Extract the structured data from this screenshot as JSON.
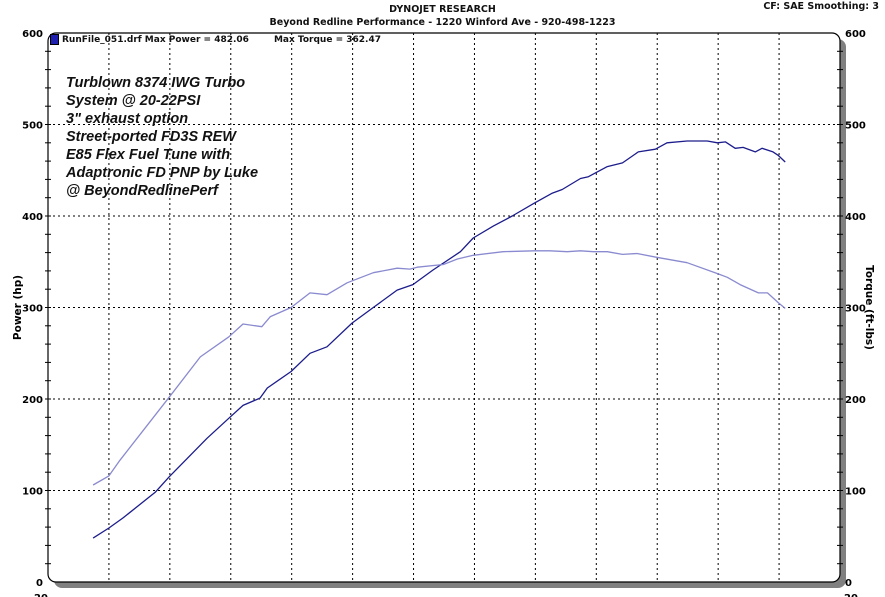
{
  "header": {
    "title": "DYNOJET RESEARCH",
    "subtitle": "Beyond Redline Performance - 1220 Winford Ave - 920-498-1223",
    "correction": "CF: SAE  Smoothing: 3"
  },
  "legend": {
    "run_label": "RunFile_051.drf Max Power = 482.06",
    "torque_label": "Max Torque = 362.47"
  },
  "notes": [
    "Turblown 8374 IWG Turbo",
    "System @ 20-22PSI",
    "3\" exhaust option",
    "Street-ported FD3S REW",
    "E85 Flex Fuel Tune with",
    "Adaptronic FD PNP by Luke",
    "@ BeyondRedlinePerf"
  ],
  "chart_data": {
    "type": "line",
    "title": "DYNOJET RESEARCH",
    "ylabel": "Power (hp)",
    "y2label": "Torque (ft-lbs)",
    "ylim": [
      0,
      600
    ],
    "y2lim": [
      0,
      600
    ],
    "yticks": [
      "0",
      "100",
      "200",
      "300",
      "400",
      "500",
      "600"
    ],
    "xlim": [
      0,
      13
    ],
    "xtick_partial": "20",
    "grid": true,
    "legend": "top-left",
    "colors": {
      "power": "#1c1c8c",
      "torque": "#8a8ad0",
      "frame_shadow": "#808080"
    },
    "series": [
      {
        "key": "power",
        "x": [
          0.74,
          1.0,
          1.23,
          1.76,
          1.99,
          2.61,
          2.97,
          3.2,
          3.48,
          3.6,
          3.99,
          4.3,
          4.58,
          4.99,
          5.34,
          5.73,
          5.99,
          6.32,
          6.77,
          6.98,
          7.31,
          7.62,
          7.98,
          8.28,
          8.44,
          8.74,
          8.87,
          9.18,
          9.43,
          9.69,
          9.97,
          10.16,
          10.49,
          10.82,
          10.99,
          11.12,
          11.28,
          11.41,
          11.61,
          11.72,
          11.9,
          11.99,
          12.1
        ],
        "values": [
          48,
          59,
          70,
          98,
          115,
          157,
          179,
          193,
          201,
          212,
          230,
          250,
          257,
          283,
          300,
          319,
          325,
          341,
          361,
          376,
          389,
          400,
          414,
          425,
          429,
          441,
          443,
          454,
          458,
          470,
          473,
          480,
          482,
          482,
          480,
          481,
          474,
          475,
          470,
          474,
          470,
          466,
          459
        ]
      },
      {
        "key": "torque",
        "x": [
          0.74,
          1.0,
          1.18,
          1.99,
          2.5,
          2.97,
          3.2,
          3.51,
          3.65,
          3.99,
          4.3,
          4.58,
          4.91,
          5.34,
          5.73,
          5.94,
          6.06,
          6.49,
          6.72,
          6.98,
          7.47,
          7.98,
          8.24,
          8.52,
          8.74,
          8.95,
          9.18,
          9.43,
          9.67,
          9.98,
          10.49,
          10.99,
          11.15,
          11.36,
          11.66,
          11.81,
          11.99,
          12.1
        ],
        "values": [
          106,
          116,
          133,
          202,
          246,
          268,
          282,
          279,
          290,
          300,
          316,
          314,
          327,
          338,
          343,
          342,
          344,
          347,
          353,
          357,
          361,
          362,
          362,
          361,
          362,
          361,
          361,
          358,
          359,
          355,
          349,
          337,
          333,
          325,
          316,
          316,
          305,
          299
        ]
      }
    ]
  }
}
